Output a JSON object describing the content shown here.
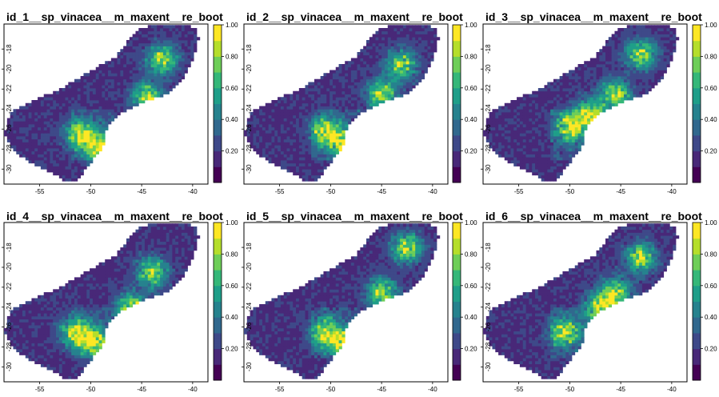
{
  "chart_data": [
    {
      "type": "heatmap",
      "title": "id_1__sp_vinacea__m_maxent__re_boot",
      "xticks": [
        "-55",
        "-50",
        "-45",
        "-40"
      ],
      "yticks": [
        "-18",
        "-20",
        "-22",
        "-24",
        "-26",
        "-28",
        "-30"
      ],
      "xlim": [
        -58.5,
        -38.5
      ],
      "ylim": [
        -31.5,
        -15.5
      ],
      "colorbar": {
        "palette": "viridis",
        "range": [
          0,
          1
        ],
        "ticks": [
          "0.20",
          "0.40",
          "0.60",
          "0.80",
          "1.00"
        ]
      },
      "hotspots": [
        [
          -51.0,
          -26.5
        ],
        [
          -49.0,
          -27.8
        ],
        [
          -44.5,
          -22.8
        ],
        [
          -43.0,
          -19.0
        ]
      ]
    },
    {
      "type": "heatmap",
      "title": "id_2__sp_vinacea__m_maxent__re_boot",
      "xticks": [
        "-55",
        "-50",
        "-45",
        "-40"
      ],
      "yticks": [
        "-18",
        "-20",
        "-22",
        "-24",
        "-26",
        "-28",
        "-30"
      ],
      "xlim": [
        -58.5,
        -38.5
      ],
      "ylim": [
        -31.5,
        -15.5
      ],
      "colorbar": {
        "palette": "viridis",
        "range": [
          0,
          1
        ],
        "ticks": [
          "0.20",
          "0.40",
          "0.60",
          "0.80",
          "1.00"
        ]
      },
      "hotspots": [
        [
          -50.5,
          -26.2
        ],
        [
          -48.5,
          -27.5
        ],
        [
          -45.0,
          -22.5
        ],
        [
          -43.0,
          -19.5
        ]
      ]
    },
    {
      "type": "heatmap",
      "title": "id_3__sp_vinacea__m_maxent__re_boot",
      "xticks": [
        "-55",
        "-50",
        "-45",
        "-40"
      ],
      "yticks": [
        "-18",
        "-20",
        "-22",
        "-24",
        "-26",
        "-28",
        "-30"
      ],
      "xlim": [
        -58.5,
        -38.5
      ],
      "ylim": [
        -31.5,
        -15.5
      ],
      "colorbar": {
        "palette": "viridis",
        "range": [
          0,
          1
        ],
        "ticks": [
          "0.20",
          "0.40",
          "0.60",
          "0.80",
          "1.00"
        ]
      },
      "hotspots": [
        [
          -50.0,
          -25.8
        ],
        [
          -48.0,
          -24.5
        ],
        [
          -45.5,
          -22.5
        ],
        [
          -43.0,
          -18.5
        ]
      ]
    },
    {
      "type": "heatmap",
      "title": "id_4__sp_vinacea__m_maxent__re_boot",
      "xticks": [
        "-55",
        "-50",
        "-45",
        "-40"
      ],
      "yticks": [
        "-18",
        "-20",
        "-22",
        "-24",
        "-26",
        "-28",
        "-30"
      ],
      "xlim": [
        -58.5,
        -38.5
      ],
      "ylim": [
        -31.5,
        -15.5
      ],
      "colorbar": {
        "palette": "viridis",
        "range": [
          0,
          1
        ],
        "ticks": [
          "0.20",
          "0.40",
          "0.60",
          "0.80",
          "1.00"
        ]
      },
      "hotspots": [
        [
          -51.5,
          -26.5
        ],
        [
          -49.5,
          -27.5
        ],
        [
          -46.0,
          -24.0
        ],
        [
          -44.0,
          -20.5
        ]
      ]
    },
    {
      "type": "heatmap",
      "title": "id_5__sp_vinacea__m_maxent__re_boot",
      "xticks": [
        "-55",
        "-50",
        "-45",
        "-40"
      ],
      "yticks": [
        "-18",
        "-20",
        "-22",
        "-24",
        "-26",
        "-28",
        "-30"
      ],
      "xlim": [
        -58.5,
        -38.5
      ],
      "ylim": [
        -31.5,
        -15.5
      ],
      "colorbar": {
        "palette": "viridis",
        "range": [
          0,
          1
        ],
        "ticks": [
          "0.20",
          "0.40",
          "0.60",
          "0.80",
          "1.00"
        ]
      },
      "hotspots": [
        [
          -50.5,
          -26.5
        ],
        [
          -48.5,
          -27.8
        ],
        [
          -45.0,
          -22.5
        ],
        [
          -42.5,
          -18.0
        ]
      ]
    },
    {
      "type": "heatmap",
      "title": "id_6__sp_vinacea__m_maxent__re_boot",
      "xticks": [
        "-55",
        "-50",
        "-45",
        "-40"
      ],
      "yticks": [
        "-18",
        "-20",
        "-22",
        "-24",
        "-26",
        "-28",
        "-30"
      ],
      "xlim": [
        -58.5,
        -38.5
      ],
      "ylim": [
        -31.5,
        -15.5
      ],
      "colorbar": {
        "palette": "viridis",
        "range": [
          0,
          1
        ],
        "ticks": [
          "0.20",
          "0.40",
          "0.60",
          "0.80",
          "1.00"
        ]
      },
      "hotspots": [
        [
          -50.5,
          -26.5
        ],
        [
          -47.0,
          -24.0
        ],
        [
          -45.5,
          -22.5
        ],
        [
          -43.0,
          -19.0
        ]
      ]
    }
  ],
  "colors": {
    "viridis": [
      "#440154",
      "#482878",
      "#3e4989",
      "#31688e",
      "#26828e",
      "#1f9e89",
      "#35b779",
      "#6ece58",
      "#b5de2b",
      "#fde725"
    ]
  }
}
